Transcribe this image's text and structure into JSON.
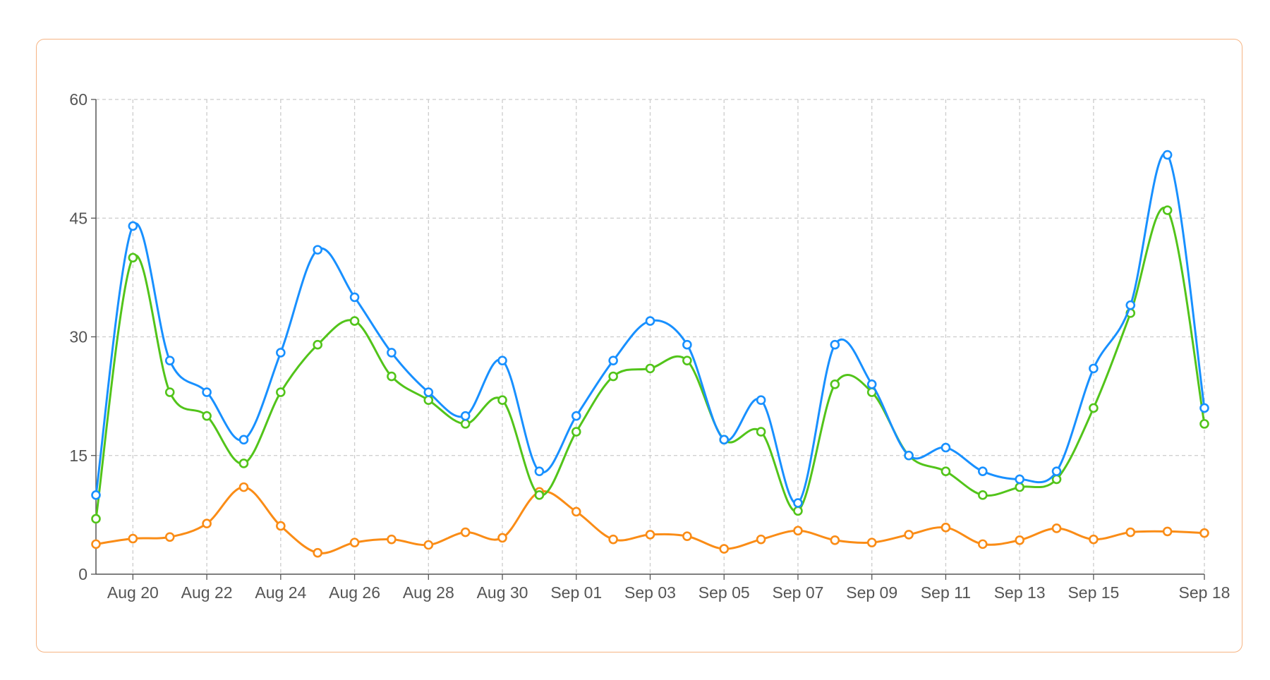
{
  "chart_data": {
    "type": "line",
    "title": "",
    "xlabel": "",
    "ylabel": "",
    "ylim": [
      0,
      60
    ],
    "yticks": [
      "0",
      "15",
      "30",
      "45",
      "60"
    ],
    "grid": true,
    "smooth": true,
    "x": [
      "Aug 19",
      "Aug 20",
      "Aug 21",
      "Aug 22",
      "Aug 23",
      "Aug 24",
      "Aug 25",
      "Aug 26",
      "Aug 27",
      "Aug 28",
      "Aug 29",
      "Aug 30",
      "Aug 31",
      "Sep 01",
      "Sep 02",
      "Sep 03",
      "Sep 04",
      "Sep 05",
      "Sep 06",
      "Sep 07",
      "Sep 08",
      "Sep 09",
      "Sep 10",
      "Sep 11",
      "Sep 12",
      "Sep 13",
      "Sep 14",
      "Sep 15",
      "Sep 16",
      "Sep 17",
      "Sep 18"
    ],
    "xtick_labels": [
      "Aug 20",
      "Aug 22",
      "Aug 24",
      "Aug 26",
      "Aug 28",
      "Aug 30",
      "Sep 01",
      "Sep 03",
      "Sep 05",
      "Sep 07",
      "Sep 09",
      "Sep 11",
      "Sep 13",
      "Sep 15",
      "Sep 18"
    ],
    "series": [
      {
        "name": "blue",
        "color": "#1890ff",
        "values": [
          10,
          44,
          27,
          23,
          17,
          28,
          41,
          35,
          28,
          23,
          20,
          27,
          13,
          20,
          27,
          32,
          29,
          17,
          22,
          9,
          29,
          24,
          15,
          16,
          13,
          12,
          13,
          26,
          34,
          53,
          21
        ]
      },
      {
        "name": "green",
        "color": "#52c41a",
        "values": [
          7,
          40,
          23,
          20,
          14,
          23,
          29,
          32,
          25,
          22,
          19,
          22,
          10,
          18,
          25,
          26,
          27,
          17,
          18,
          8,
          24,
          23,
          15,
          13,
          10,
          11,
          12,
          21,
          33,
          46,
          19
        ]
      },
      {
        "name": "orange",
        "color": "#fa8c16",
        "values": [
          3.8,
          4.5,
          4.7,
          6.4,
          11,
          6.1,
          2.7,
          4,
          4.4,
          3.7,
          5.3,
          4.6,
          10.4,
          7.9,
          4.4,
          5,
          4.8,
          3.2,
          4.4,
          5.5,
          4.3,
          4,
          5,
          5.9,
          3.8,
          4.3,
          5.8,
          4.4,
          5.3,
          5.4,
          5.2
        ]
      }
    ]
  }
}
